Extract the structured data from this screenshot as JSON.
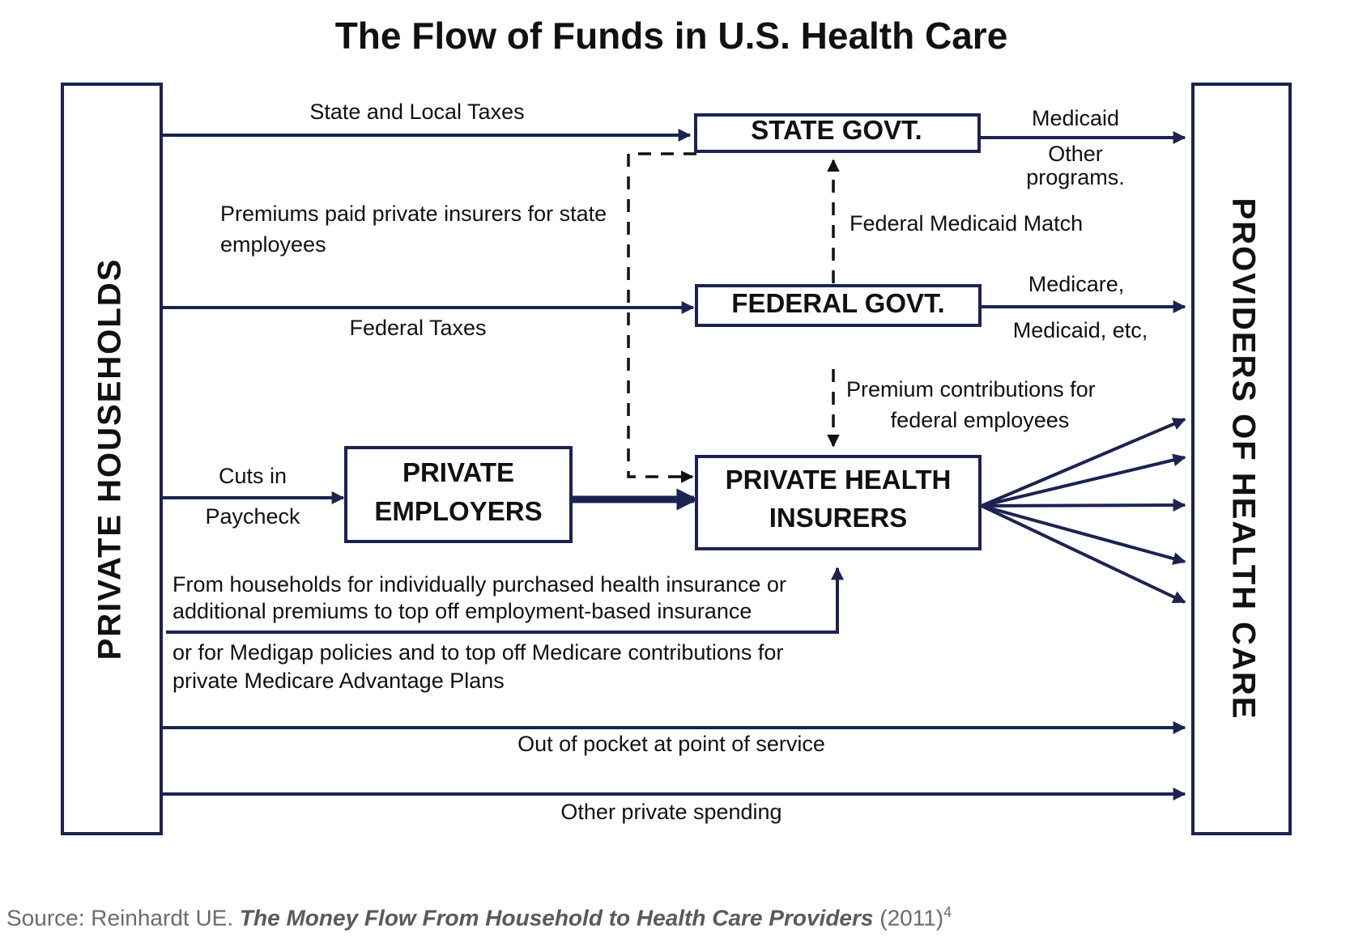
{
  "title": "The Flow of Funds in U.S. Health Care",
  "nodes": {
    "households": "PRIVATE HOUSEHOLDS",
    "providers": "PROVIDERS OF HEALTH CARE",
    "state_govt": "STATE GOVT.",
    "federal_govt": "FEDERAL GOVT.",
    "employers": [
      "PRIVATE",
      "EMPLOYERS"
    ],
    "insurers": [
      "PRIVATE HEALTH",
      "INSURERS"
    ]
  },
  "flows": {
    "state_local_taxes": "State and Local Taxes",
    "state_premiums": [
      "Premiums  paid private  insurers for state",
      "employees"
    ],
    "federal_taxes": "Federal Taxes",
    "medicaid": "Medicaid",
    "other_programs": [
      "Other",
      "programs."
    ],
    "federal_medicaid_match": "Federal Medicaid Match",
    "medicare": [
      "Medicare,",
      "Medicaid, etc,"
    ],
    "federal_premiums": [
      "Premium  contributions   for",
      "federal employees"
    ],
    "paycheck": [
      "Cuts in",
      "Paycheck"
    ],
    "individual_insurance": [
      "From households  for individually  purchased health  insurance or",
      "additional  premiums to top off employment-based  insurance",
      "or for Medigap policies and to top off Medicare contributions for",
      "private  Medicare Advantage  Plans"
    ],
    "out_of_pocket": "Out of pocket at point of service",
    "other_private": "Other private  spending"
  },
  "source": {
    "prefix": "Source: Reinhardt UE. ",
    "title": "The Money Flow From Household to Health Care Providers",
    "suffix": " (2011)",
    "ref": "4"
  }
}
